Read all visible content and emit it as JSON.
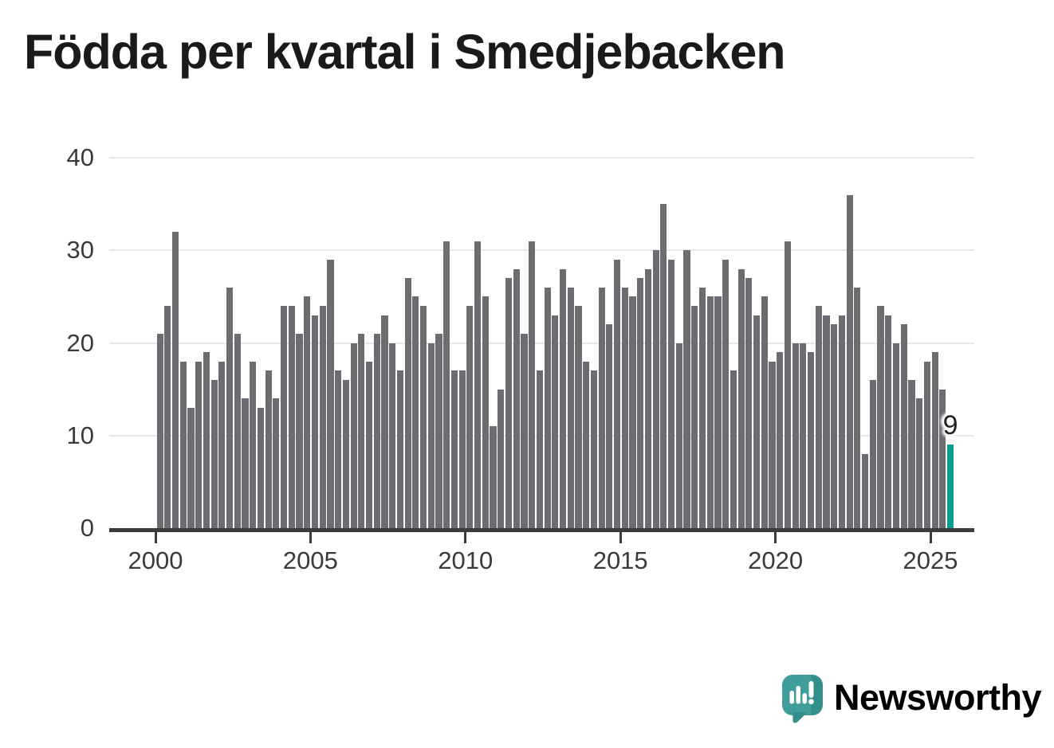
{
  "page": {
    "background": "#ffffff"
  },
  "chart_data": {
    "type": "bar",
    "title": "Födda per kvartal i Smedjebacken",
    "x_period_start": "2000 Q1",
    "x_period_end": "2025 Q3",
    "ylim": [
      0,
      40
    ],
    "grid": "horizontal-light",
    "y_ticks": [
      {
        "label": "0",
        "value": 0
      },
      {
        "label": "10",
        "value": 10
      },
      {
        "label": "20",
        "value": 20
      },
      {
        "label": "30",
        "value": 30
      },
      {
        "label": "40",
        "value": 40
      }
    ],
    "x_ticks": [
      {
        "label": "2000",
        "quarter_index": 0
      },
      {
        "label": "2005",
        "quarter_index": 20
      },
      {
        "label": "2010",
        "quarter_index": 40
      },
      {
        "label": "2015",
        "quarter_index": 60
      },
      {
        "label": "2020",
        "quarter_index": 80
      },
      {
        "label": "2025",
        "quarter_index": 100
      }
    ],
    "values": [
      21,
      24,
      32,
      18,
      13,
      18,
      19,
      16,
      18,
      26,
      21,
      14,
      18,
      13,
      17,
      14,
      24,
      24,
      21,
      25,
      23,
      24,
      29,
      17,
      16,
      20,
      21,
      18,
      21,
      23,
      20,
      17,
      27,
      25,
      24,
      20,
      21,
      31,
      17,
      17,
      24,
      31,
      25,
      11,
      15,
      27,
      28,
      21,
      31,
      17,
      26,
      23,
      28,
      26,
      24,
      18,
      17,
      26,
      22,
      29,
      26,
      25,
      27,
      28,
      30,
      35,
      29,
      20,
      30,
      24,
      26,
      25,
      25,
      29,
      17,
      28,
      27,
      23,
      25,
      18,
      19,
      31,
      20,
      20,
      19,
      24,
      23,
      22,
      23,
      36,
      26,
      8,
      16,
      24,
      23,
      20,
      22,
      16,
      14,
      18,
      19,
      15,
      9
    ],
    "highlight": {
      "index": 102,
      "value": 9,
      "label": "9"
    },
    "colors": {
      "bar": "#6c6c71",
      "highlight_bar": "#089c93",
      "axis_line": "#3b3b3b",
      "gridline": "#e7e7e7",
      "tick_label": "#3a3a3a",
      "title_text": "#1a1a1a",
      "annotation_text": "#222222"
    }
  },
  "branding": {
    "wordmark": "Newsworthy",
    "logo_icon": "speech-bubble-bar-chart-icon",
    "teal": "#3e9c97",
    "teal_dark": "#348f8a"
  }
}
